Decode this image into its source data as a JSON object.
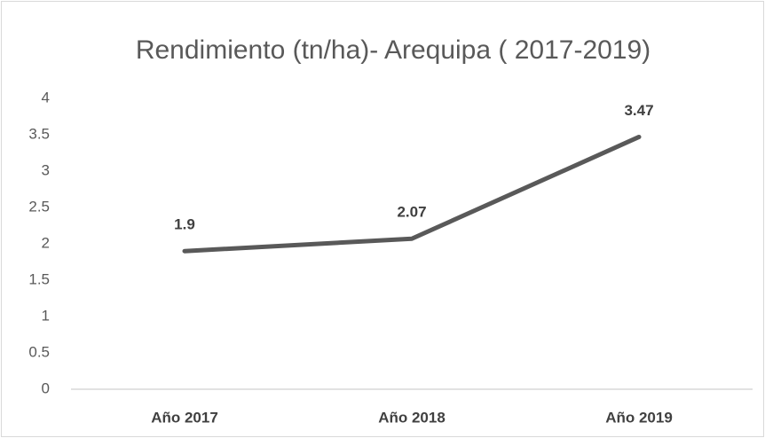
{
  "chart_data": {
    "type": "line",
    "title": "Rendimiento (tn/ha)- Arequipa ( 2017-2019)",
    "categories": [
      "Año 2017",
      "Año 2018",
      "Año 2019"
    ],
    "values": [
      1.9,
      2.07,
      3.47
    ],
    "color": "#595959",
    "ylim": [
      0,
      4
    ],
    "yticks": [
      0,
      0.5,
      1,
      1.5,
      2,
      2.5,
      3,
      3.5,
      4
    ],
    "grid": false
  }
}
